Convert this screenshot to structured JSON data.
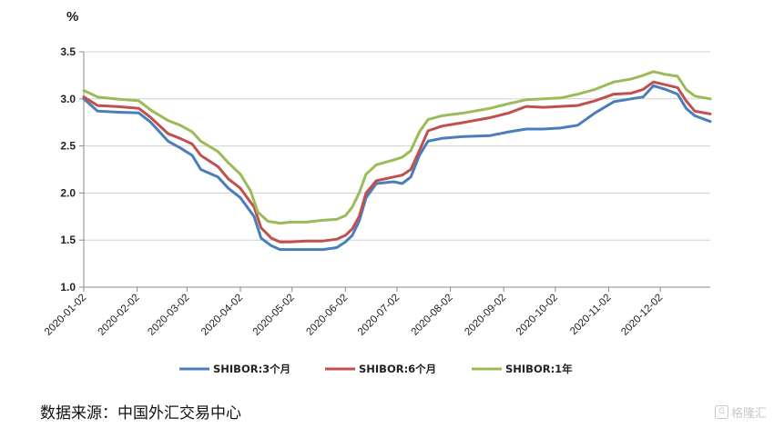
{
  "chart_data": {
    "type": "line",
    "unit_label": "%",
    "ylim": [
      1.0,
      3.5
    ],
    "yticks": [
      "1.0",
      "1.5",
      "2.0",
      "2.5",
      "3.0",
      "3.5"
    ],
    "x_ticks": [
      "2020-01-02",
      "2020-02-02",
      "2020-03-02",
      "2020-04-02",
      "2020-05-02",
      "2020-06-02",
      "2020-07-02",
      "2020-08-02",
      "2020-09-02",
      "2020-10-02",
      "2020-11-02",
      "2020-12-02"
    ],
    "x_start": "2020-01-02",
    "x_end": "2020-12-31",
    "grid": "horizontal",
    "legend_position": "bottom",
    "series": [
      {
        "name": "SHIBOR:3个月",
        "color": "#4a7ebb",
        "points": [
          [
            "2020-01-02",
            3.0
          ],
          [
            "2020-01-10",
            2.87
          ],
          [
            "2020-01-20",
            2.86
          ],
          [
            "2020-02-03",
            2.85
          ],
          [
            "2020-02-10",
            2.75
          ],
          [
            "2020-02-20",
            2.55
          ],
          [
            "2020-02-27",
            2.48
          ],
          [
            "2020-03-05",
            2.4
          ],
          [
            "2020-03-10",
            2.25
          ],
          [
            "2020-03-20",
            2.17
          ],
          [
            "2020-03-26",
            2.05
          ],
          [
            "2020-04-02",
            1.95
          ],
          [
            "2020-04-10",
            1.75
          ],
          [
            "2020-04-14",
            1.52
          ],
          [
            "2020-04-20",
            1.44
          ],
          [
            "2020-04-25",
            1.4
          ],
          [
            "2020-05-01",
            1.4
          ],
          [
            "2020-05-10",
            1.4
          ],
          [
            "2020-05-20",
            1.4
          ],
          [
            "2020-05-28",
            1.42
          ],
          [
            "2020-06-02",
            1.48
          ],
          [
            "2020-06-06",
            1.55
          ],
          [
            "2020-06-10",
            1.7
          ],
          [
            "2020-06-14",
            1.95
          ],
          [
            "2020-06-20",
            2.1
          ],
          [
            "2020-06-30",
            2.12
          ],
          [
            "2020-07-05",
            2.1
          ],
          [
            "2020-07-10",
            2.17
          ],
          [
            "2020-07-15",
            2.4
          ],
          [
            "2020-07-20",
            2.55
          ],
          [
            "2020-07-28",
            2.58
          ],
          [
            "2020-08-10",
            2.6
          ],
          [
            "2020-08-25",
            2.61
          ],
          [
            "2020-09-05",
            2.65
          ],
          [
            "2020-09-15",
            2.68
          ],
          [
            "2020-09-25",
            2.68
          ],
          [
            "2020-10-05",
            2.69
          ],
          [
            "2020-10-15",
            2.72
          ],
          [
            "2020-10-25",
            2.85
          ],
          [
            "2020-11-05",
            2.97
          ],
          [
            "2020-11-15",
            3.0
          ],
          [
            "2020-11-22",
            3.02
          ],
          [
            "2020-11-28",
            3.14
          ],
          [
            "2020-12-05",
            3.1
          ],
          [
            "2020-12-12",
            3.05
          ],
          [
            "2020-12-17",
            2.9
          ],
          [
            "2020-12-22",
            2.82
          ],
          [
            "2020-12-31",
            2.76
          ]
        ]
      },
      {
        "name": "SHIBOR:6个月",
        "color": "#c0504d",
        "points": [
          [
            "2020-01-02",
            3.02
          ],
          [
            "2020-01-10",
            2.93
          ],
          [
            "2020-01-20",
            2.92
          ],
          [
            "2020-02-03",
            2.9
          ],
          [
            "2020-02-10",
            2.8
          ],
          [
            "2020-02-20",
            2.63
          ],
          [
            "2020-02-27",
            2.58
          ],
          [
            "2020-03-05",
            2.52
          ],
          [
            "2020-03-10",
            2.4
          ],
          [
            "2020-03-20",
            2.28
          ],
          [
            "2020-03-26",
            2.15
          ],
          [
            "2020-04-02",
            2.05
          ],
          [
            "2020-04-10",
            1.85
          ],
          [
            "2020-04-14",
            1.63
          ],
          [
            "2020-04-20",
            1.52
          ],
          [
            "2020-04-25",
            1.48
          ],
          [
            "2020-05-01",
            1.48
          ],
          [
            "2020-05-10",
            1.49
          ],
          [
            "2020-05-20",
            1.49
          ],
          [
            "2020-05-28",
            1.51
          ],
          [
            "2020-06-02",
            1.55
          ],
          [
            "2020-06-06",
            1.62
          ],
          [
            "2020-06-10",
            1.75
          ],
          [
            "2020-06-14",
            2.0
          ],
          [
            "2020-06-20",
            2.13
          ],
          [
            "2020-06-30",
            2.17
          ],
          [
            "2020-07-05",
            2.19
          ],
          [
            "2020-07-10",
            2.25
          ],
          [
            "2020-07-15",
            2.45
          ],
          [
            "2020-07-20",
            2.66
          ],
          [
            "2020-07-28",
            2.71
          ],
          [
            "2020-08-10",
            2.75
          ],
          [
            "2020-08-25",
            2.8
          ],
          [
            "2020-09-05",
            2.85
          ],
          [
            "2020-09-15",
            2.92
          ],
          [
            "2020-09-25",
            2.91
          ],
          [
            "2020-10-05",
            2.92
          ],
          [
            "2020-10-15",
            2.93
          ],
          [
            "2020-10-25",
            2.98
          ],
          [
            "2020-11-05",
            3.05
          ],
          [
            "2020-11-15",
            3.06
          ],
          [
            "2020-11-22",
            3.1
          ],
          [
            "2020-11-28",
            3.18
          ],
          [
            "2020-12-05",
            3.15
          ],
          [
            "2020-12-12",
            3.12
          ],
          [
            "2020-12-17",
            2.98
          ],
          [
            "2020-12-22",
            2.87
          ],
          [
            "2020-12-31",
            2.84
          ]
        ]
      },
      {
        "name": "SHIBOR:1年",
        "color": "#9bbb59",
        "points": [
          [
            "2020-01-02",
            3.09
          ],
          [
            "2020-01-10",
            3.02
          ],
          [
            "2020-01-20",
            3.0
          ],
          [
            "2020-02-03",
            2.98
          ],
          [
            "2020-02-10",
            2.88
          ],
          [
            "2020-02-20",
            2.77
          ],
          [
            "2020-02-27",
            2.72
          ],
          [
            "2020-03-05",
            2.65
          ],
          [
            "2020-03-10",
            2.55
          ],
          [
            "2020-03-20",
            2.44
          ],
          [
            "2020-03-26",
            2.32
          ],
          [
            "2020-04-02",
            2.2
          ],
          [
            "2020-04-08",
            2.02
          ],
          [
            "2020-04-12",
            1.8
          ],
          [
            "2020-04-18",
            1.7
          ],
          [
            "2020-04-25",
            1.68
          ],
          [
            "2020-05-01",
            1.69
          ],
          [
            "2020-05-10",
            1.69
          ],
          [
            "2020-05-20",
            1.71
          ],
          [
            "2020-05-28",
            1.72
          ],
          [
            "2020-06-02",
            1.76
          ],
          [
            "2020-06-06",
            1.85
          ],
          [
            "2020-06-10",
            2.0
          ],
          [
            "2020-06-14",
            2.2
          ],
          [
            "2020-06-20",
            2.3
          ],
          [
            "2020-06-30",
            2.35
          ],
          [
            "2020-07-05",
            2.38
          ],
          [
            "2020-07-10",
            2.45
          ],
          [
            "2020-07-15",
            2.65
          ],
          [
            "2020-07-20",
            2.78
          ],
          [
            "2020-07-28",
            2.82
          ],
          [
            "2020-08-10",
            2.85
          ],
          [
            "2020-08-25",
            2.9
          ],
          [
            "2020-09-05",
            2.95
          ],
          [
            "2020-09-15",
            2.99
          ],
          [
            "2020-09-25",
            3.0
          ],
          [
            "2020-10-05",
            3.01
          ],
          [
            "2020-10-15",
            3.05
          ],
          [
            "2020-10-25",
            3.1
          ],
          [
            "2020-11-05",
            3.18
          ],
          [
            "2020-11-15",
            3.21
          ],
          [
            "2020-11-22",
            3.25
          ],
          [
            "2020-11-28",
            3.29
          ],
          [
            "2020-12-05",
            3.26
          ],
          [
            "2020-12-12",
            3.24
          ],
          [
            "2020-12-17",
            3.1
          ],
          [
            "2020-12-22",
            3.03
          ],
          [
            "2020-12-31",
            3.0
          ]
        ]
      }
    ]
  },
  "footer": {
    "source": "数据来源：中国外汇交易中心",
    "watermark": "格隆汇"
  }
}
